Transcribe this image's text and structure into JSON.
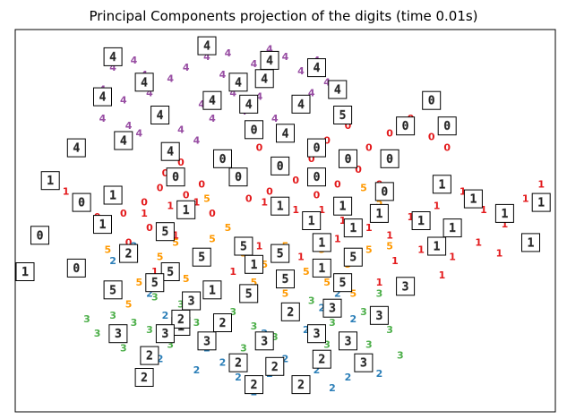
{
  "window": {
    "title": "Principal Components projection of the digits (time 0.01s)"
  },
  "chart_data": {
    "type": "scatter",
    "title": "Principal Components projection of the digits (time 0.01s)",
    "xlabel": "",
    "ylabel": "",
    "axis_ticks": "none",
    "xlim": [
      0,
      1
    ],
    "ylim": [
      0,
      1
    ],
    "grid": false,
    "legend": "none",
    "classes": [
      {
        "digit": "0",
        "color": "#e31a1c"
      },
      {
        "digit": "1",
        "color": "#e31a1c"
      },
      {
        "digit": "2",
        "color": "#2c7fb8"
      },
      {
        "digit": "3",
        "color": "#4daf4a"
      },
      {
        "digit": "4",
        "color": "#984ea3"
      },
      {
        "digit": "5",
        "color": "#ff9900"
      }
    ],
    "points": [
      {
        "d": "4",
        "x": 0.17,
        "y": 0.92
      },
      {
        "d": "4",
        "x": 0.21,
        "y": 0.94
      },
      {
        "d": "4",
        "x": 0.23,
        "y": 0.9
      },
      {
        "d": "4",
        "x": 0.15,
        "y": 0.86
      },
      {
        "d": "4",
        "x": 0.19,
        "y": 0.83
      },
      {
        "d": "4",
        "x": 0.24,
        "y": 0.85
      },
      {
        "d": "4",
        "x": 0.28,
        "y": 0.89
      },
      {
        "d": "4",
        "x": 0.31,
        "y": 0.92
      },
      {
        "d": "4",
        "x": 0.35,
        "y": 0.95
      },
      {
        "d": "4",
        "x": 0.38,
        "y": 0.9
      },
      {
        "d": "4",
        "x": 0.44,
        "y": 0.93
      },
      {
        "d": "4",
        "x": 0.47,
        "y": 0.97
      },
      {
        "d": "4",
        "x": 0.5,
        "y": 0.95
      },
      {
        "d": "4",
        "x": 0.53,
        "y": 0.91
      },
      {
        "d": "4",
        "x": 0.56,
        "y": 0.94
      },
      {
        "d": "4",
        "x": 0.58,
        "y": 0.88
      },
      {
        "d": "4",
        "x": 0.61,
        "y": 0.86
      },
      {
        "d": "4",
        "x": 0.15,
        "y": 0.78
      },
      {
        "d": "4",
        "x": 0.2,
        "y": 0.76
      },
      {
        "d": "4",
        "x": 0.26,
        "y": 0.8
      },
      {
        "d": "4",
        "x": 0.3,
        "y": 0.75
      },
      {
        "d": "4",
        "x": 0.34,
        "y": 0.82
      },
      {
        "d": "4",
        "x": 0.4,
        "y": 0.85
      },
      {
        "d": "4",
        "x": 0.45,
        "y": 0.84
      },
      {
        "d": "4",
        "x": 0.52,
        "y": 0.82
      },
      {
        "d": "4",
        "x": 0.48,
        "y": 0.78
      },
      {
        "d": "4",
        "x": 0.36,
        "y": 0.78
      },
      {
        "d": "4",
        "x": 0.27,
        "y": 0.7
      },
      {
        "d": "4",
        "x": 0.33,
        "y": 0.72
      },
      {
        "d": "4",
        "x": 0.42,
        "y": 0.8
      },
      {
        "d": "4",
        "x": 0.22,
        "y": 0.74
      },
      {
        "d": "4",
        "x": 0.39,
        "y": 0.96
      },
      {
        "d": "4",
        "x": 0.55,
        "y": 0.85
      },
      {
        "d": "0",
        "x": 0.3,
        "y": 0.66
      },
      {
        "d": "0",
        "x": 0.27,
        "y": 0.63
      },
      {
        "d": "0",
        "x": 0.34,
        "y": 0.6
      },
      {
        "d": "0",
        "x": 0.38,
        "y": 0.68
      },
      {
        "d": "0",
        "x": 0.41,
        "y": 0.62
      },
      {
        "d": "0",
        "x": 0.45,
        "y": 0.7
      },
      {
        "d": "0",
        "x": 0.49,
        "y": 0.66
      },
      {
        "d": "0",
        "x": 0.52,
        "y": 0.61
      },
      {
        "d": "0",
        "x": 0.55,
        "y": 0.67
      },
      {
        "d": "0",
        "x": 0.58,
        "y": 0.72
      },
      {
        "d": "0",
        "x": 0.62,
        "y": 0.76
      },
      {
        "d": "0",
        "x": 0.66,
        "y": 0.7
      },
      {
        "d": "0",
        "x": 0.7,
        "y": 0.74
      },
      {
        "d": "0",
        "x": 0.74,
        "y": 0.78
      },
      {
        "d": "0",
        "x": 0.64,
        "y": 0.64
      },
      {
        "d": "0",
        "x": 0.6,
        "y": 0.6
      },
      {
        "d": "0",
        "x": 0.56,
        "y": 0.57
      },
      {
        "d": "0",
        "x": 0.31,
        "y": 0.57
      },
      {
        "d": "0",
        "x": 0.23,
        "y": 0.55
      },
      {
        "d": "0",
        "x": 0.19,
        "y": 0.52
      },
      {
        "d": "0",
        "x": 0.24,
        "y": 0.48
      },
      {
        "d": "0",
        "x": 0.2,
        "y": 0.44
      },
      {
        "d": "0",
        "x": 0.14,
        "y": 0.51
      },
      {
        "d": "0",
        "x": 0.36,
        "y": 0.52
      },
      {
        "d": "0",
        "x": 0.43,
        "y": 0.56
      },
      {
        "d": "0",
        "x": 0.47,
        "y": 0.58
      },
      {
        "d": "0",
        "x": 0.68,
        "y": 0.6
      },
      {
        "d": "0",
        "x": 0.78,
        "y": 0.73
      },
      {
        "d": "0",
        "x": 0.81,
        "y": 0.7
      },
      {
        "d": "0",
        "x": 0.26,
        "y": 0.59
      },
      {
        "d": "1",
        "x": 0.08,
        "y": 0.58
      },
      {
        "d": "1",
        "x": 0.23,
        "y": 0.52
      },
      {
        "d": "1",
        "x": 0.28,
        "y": 0.54
      },
      {
        "d": "1",
        "x": 0.33,
        "y": 0.55
      },
      {
        "d": "1",
        "x": 0.46,
        "y": 0.55
      },
      {
        "d": "1",
        "x": 0.52,
        "y": 0.53
      },
      {
        "d": "1",
        "x": 0.57,
        "y": 0.53
      },
      {
        "d": "1",
        "x": 0.61,
        "y": 0.5
      },
      {
        "d": "1",
        "x": 0.66,
        "y": 0.48
      },
      {
        "d": "1",
        "x": 0.7,
        "y": 0.46
      },
      {
        "d": "1",
        "x": 0.74,
        "y": 0.51
      },
      {
        "d": "1",
        "x": 0.79,
        "y": 0.54
      },
      {
        "d": "1",
        "x": 0.84,
        "y": 0.58
      },
      {
        "d": "1",
        "x": 0.88,
        "y": 0.53
      },
      {
        "d": "1",
        "x": 0.92,
        "y": 0.49
      },
      {
        "d": "1",
        "x": 0.96,
        "y": 0.56
      },
      {
        "d": "1",
        "x": 0.99,
        "y": 0.6
      },
      {
        "d": "1",
        "x": 0.87,
        "y": 0.44
      },
      {
        "d": "1",
        "x": 0.82,
        "y": 0.4
      },
      {
        "d": "1",
        "x": 0.76,
        "y": 0.42
      },
      {
        "d": "1",
        "x": 0.71,
        "y": 0.39
      },
      {
        "d": "1",
        "x": 0.6,
        "y": 0.45
      },
      {
        "d": "1",
        "x": 0.53,
        "y": 0.4
      },
      {
        "d": "1",
        "x": 0.45,
        "y": 0.43
      },
      {
        "d": "1",
        "x": 0.4,
        "y": 0.36
      },
      {
        "d": "1",
        "x": 0.29,
        "y": 0.46
      },
      {
        "d": "1",
        "x": 0.25,
        "y": 0.36
      },
      {
        "d": "1",
        "x": 0.91,
        "y": 0.41
      },
      {
        "d": "1",
        "x": 0.8,
        "y": 0.35
      },
      {
        "d": "1",
        "x": 0.68,
        "y": 0.33
      },
      {
        "d": "5",
        "x": 0.29,
        "y": 0.44
      },
      {
        "d": "5",
        "x": 0.33,
        "y": 0.4
      },
      {
        "d": "5",
        "x": 0.36,
        "y": 0.45
      },
      {
        "d": "5",
        "x": 0.39,
        "y": 0.48
      },
      {
        "d": "5",
        "x": 0.42,
        "y": 0.41
      },
      {
        "d": "5",
        "x": 0.46,
        "y": 0.38
      },
      {
        "d": "5",
        "x": 0.5,
        "y": 0.43
      },
      {
        "d": "5",
        "x": 0.54,
        "y": 0.36
      },
      {
        "d": "5",
        "x": 0.57,
        "y": 0.42
      },
      {
        "d": "5",
        "x": 0.62,
        "y": 0.38
      },
      {
        "d": "5",
        "x": 0.66,
        "y": 0.42
      },
      {
        "d": "5",
        "x": 0.68,
        "y": 0.55
      },
      {
        "d": "5",
        "x": 0.65,
        "y": 0.59
      },
      {
        "d": "5",
        "x": 0.31,
        "y": 0.34
      },
      {
        "d": "5",
        "x": 0.26,
        "y": 0.4
      },
      {
        "d": "5",
        "x": 0.22,
        "y": 0.33
      },
      {
        "d": "5",
        "x": 0.2,
        "y": 0.27
      },
      {
        "d": "5",
        "x": 0.37,
        "y": 0.3
      },
      {
        "d": "5",
        "x": 0.44,
        "y": 0.33
      },
      {
        "d": "5",
        "x": 0.5,
        "y": 0.3
      },
      {
        "d": "5",
        "x": 0.58,
        "y": 0.33
      },
      {
        "d": "5",
        "x": 0.63,
        "y": 0.3
      },
      {
        "d": "5",
        "x": 0.7,
        "y": 0.43
      },
      {
        "d": "5",
        "x": 0.35,
        "y": 0.56
      },
      {
        "d": "5",
        "x": 0.16,
        "y": 0.42
      },
      {
        "d": "3",
        "x": 0.17,
        "y": 0.24
      },
      {
        "d": "3",
        "x": 0.14,
        "y": 0.19
      },
      {
        "d": "3",
        "x": 0.19,
        "y": 0.15
      },
      {
        "d": "3",
        "x": 0.24,
        "y": 0.2
      },
      {
        "d": "3",
        "x": 0.28,
        "y": 0.16
      },
      {
        "d": "3",
        "x": 0.33,
        "y": 0.22
      },
      {
        "d": "3",
        "x": 0.36,
        "y": 0.18
      },
      {
        "d": "3",
        "x": 0.4,
        "y": 0.25
      },
      {
        "d": "3",
        "x": 0.44,
        "y": 0.21
      },
      {
        "d": "3",
        "x": 0.48,
        "y": 0.18
      },
      {
        "d": "3",
        "x": 0.52,
        "y": 0.24
      },
      {
        "d": "3",
        "x": 0.55,
        "y": 0.28
      },
      {
        "d": "3",
        "x": 0.59,
        "y": 0.22
      },
      {
        "d": "3",
        "x": 0.62,
        "y": 0.18
      },
      {
        "d": "3",
        "x": 0.65,
        "y": 0.25
      },
      {
        "d": "3",
        "x": 0.68,
        "y": 0.3
      },
      {
        "d": "3",
        "x": 0.66,
        "y": 0.16
      },
      {
        "d": "3",
        "x": 0.7,
        "y": 0.2
      },
      {
        "d": "3",
        "x": 0.72,
        "y": 0.13
      },
      {
        "d": "3",
        "x": 0.3,
        "y": 0.27
      },
      {
        "d": "3",
        "x": 0.25,
        "y": 0.29
      },
      {
        "d": "3",
        "x": 0.21,
        "y": 0.22
      },
      {
        "d": "3",
        "x": 0.58,
        "y": 0.16
      },
      {
        "d": "3",
        "x": 0.12,
        "y": 0.23
      },
      {
        "d": "3",
        "x": 0.42,
        "y": 0.15
      },
      {
        "d": "2",
        "x": 0.17,
        "y": 0.39
      },
      {
        "d": "2",
        "x": 0.21,
        "y": 0.43
      },
      {
        "d": "2",
        "x": 0.24,
        "y": 0.3
      },
      {
        "d": "2",
        "x": 0.27,
        "y": 0.24
      },
      {
        "d": "2",
        "x": 0.3,
        "y": 0.2
      },
      {
        "d": "2",
        "x": 0.35,
        "y": 0.15
      },
      {
        "d": "2",
        "x": 0.38,
        "y": 0.11
      },
      {
        "d": "2",
        "x": 0.41,
        "y": 0.07
      },
      {
        "d": "2",
        "x": 0.44,
        "y": 0.03
      },
      {
        "d": "2",
        "x": 0.47,
        "y": 0.08
      },
      {
        "d": "2",
        "x": 0.5,
        "y": 0.12
      },
      {
        "d": "2",
        "x": 0.53,
        "y": 0.05
      },
      {
        "d": "2",
        "x": 0.56,
        "y": 0.09
      },
      {
        "d": "2",
        "x": 0.59,
        "y": 0.04
      },
      {
        "d": "2",
        "x": 0.62,
        "y": 0.07
      },
      {
        "d": "2",
        "x": 0.65,
        "y": 0.11
      },
      {
        "d": "2",
        "x": 0.68,
        "y": 0.08
      },
      {
        "d": "2",
        "x": 0.46,
        "y": 0.19
      },
      {
        "d": "2",
        "x": 0.5,
        "y": 0.25
      },
      {
        "d": "2",
        "x": 0.54,
        "y": 0.2
      },
      {
        "d": "2",
        "x": 0.57,
        "y": 0.26
      },
      {
        "d": "2",
        "x": 0.6,
        "y": 0.3
      },
      {
        "d": "2",
        "x": 0.63,
        "y": 0.23
      },
      {
        "d": "2",
        "x": 0.33,
        "y": 0.09
      },
      {
        "d": "2",
        "x": 0.26,
        "y": 0.12
      },
      {
        "d": "2",
        "x": 0.18,
        "y": 0.31
      }
    ],
    "thumbnails": [
      {
        "d": "4",
        "x": 0.17,
        "y": 0.95
      },
      {
        "d": "4",
        "x": 0.35,
        "y": 0.98
      },
      {
        "d": "4",
        "x": 0.47,
        "y": 0.94
      },
      {
        "d": "4",
        "x": 0.56,
        "y": 0.92
      },
      {
        "d": "4",
        "x": 0.23,
        "y": 0.88
      },
      {
        "d": "4",
        "x": 0.41,
        "y": 0.88
      },
      {
        "d": "4",
        "x": 0.46,
        "y": 0.89
      },
      {
        "d": "4",
        "x": 0.6,
        "y": 0.86
      },
      {
        "d": "4",
        "x": 0.15,
        "y": 0.84
      },
      {
        "d": "4",
        "x": 0.36,
        "y": 0.83
      },
      {
        "d": "4",
        "x": 0.43,
        "y": 0.82
      },
      {
        "d": "4",
        "x": 0.53,
        "y": 0.82
      },
      {
        "d": "4",
        "x": 0.26,
        "y": 0.79
      },
      {
        "d": "4",
        "x": 0.5,
        "y": 0.74
      },
      {
        "d": "4",
        "x": 0.19,
        "y": 0.72
      },
      {
        "d": "4",
        "x": 0.28,
        "y": 0.69
      },
      {
        "d": "4",
        "x": 0.1,
        "y": 0.7
      },
      {
        "d": "0",
        "x": 0.78,
        "y": 0.83
      },
      {
        "d": "0",
        "x": 0.73,
        "y": 0.76
      },
      {
        "d": "0",
        "x": 0.81,
        "y": 0.76
      },
      {
        "d": "0",
        "x": 0.44,
        "y": 0.75
      },
      {
        "d": "0",
        "x": 0.56,
        "y": 0.7
      },
      {
        "d": "0",
        "x": 0.62,
        "y": 0.67
      },
      {
        "d": "0",
        "x": 0.7,
        "y": 0.67
      },
      {
        "d": "0",
        "x": 0.38,
        "y": 0.67
      },
      {
        "d": "0",
        "x": 0.49,
        "y": 0.65
      },
      {
        "d": "0",
        "x": 0.56,
        "y": 0.62
      },
      {
        "d": "0",
        "x": 0.29,
        "y": 0.62
      },
      {
        "d": "0",
        "x": 0.41,
        "y": 0.62
      },
      {
        "d": "0",
        "x": 0.69,
        "y": 0.58
      },
      {
        "d": "0",
        "x": 0.11,
        "y": 0.55
      },
      {
        "d": "0",
        "x": 0.03,
        "y": 0.46
      },
      {
        "d": "0",
        "x": 0.1,
        "y": 0.37
      },
      {
        "d": "1",
        "x": 0.05,
        "y": 0.61
      },
      {
        "d": "1",
        "x": 0.8,
        "y": 0.6
      },
      {
        "d": "1",
        "x": 0.86,
        "y": 0.56
      },
      {
        "d": "1",
        "x": 0.99,
        "y": 0.55
      },
      {
        "d": "1",
        "x": 0.17,
        "y": 0.57
      },
      {
        "d": "1",
        "x": 0.61,
        "y": 0.54
      },
      {
        "d": "1",
        "x": 0.31,
        "y": 0.53
      },
      {
        "d": "1",
        "x": 0.49,
        "y": 0.54
      },
      {
        "d": "1",
        "x": 0.68,
        "y": 0.52
      },
      {
        "d": "1",
        "x": 0.92,
        "y": 0.52
      },
      {
        "d": "1",
        "x": 0.55,
        "y": 0.5
      },
      {
        "d": "1",
        "x": 0.76,
        "y": 0.5
      },
      {
        "d": "1",
        "x": 0.15,
        "y": 0.49
      },
      {
        "d": "1",
        "x": 0.82,
        "y": 0.48
      },
      {
        "d": "1",
        "x": 0.63,
        "y": 0.48
      },
      {
        "d": "1",
        "x": 0.97,
        "y": 0.44
      },
      {
        "d": "1",
        "x": 0.79,
        "y": 0.43
      },
      {
        "d": "1",
        "x": 0.57,
        "y": 0.44
      },
      {
        "d": "1",
        "x": 0.44,
        "y": 0.38
      },
      {
        "d": "1",
        "x": 0.0,
        "y": 0.36
      },
      {
        "d": "1",
        "x": 0.57,
        "y": 0.37
      },
      {
        "d": "1",
        "x": 0.36,
        "y": 0.31
      },
      {
        "d": "1",
        "x": 0.3,
        "y": 0.21
      },
      {
        "d": "2",
        "x": 0.3,
        "y": 0.23
      },
      {
        "d": "2",
        "x": 0.2,
        "y": 0.41
      },
      {
        "d": "2",
        "x": 0.51,
        "y": 0.25
      },
      {
        "d": "2",
        "x": 0.38,
        "y": 0.22
      },
      {
        "d": "2",
        "x": 0.24,
        "y": 0.13
      },
      {
        "d": "2",
        "x": 0.41,
        "y": 0.11
      },
      {
        "d": "2",
        "x": 0.48,
        "y": 0.1
      },
      {
        "d": "2",
        "x": 0.57,
        "y": 0.12
      },
      {
        "d": "2",
        "x": 0.44,
        "y": 0.05
      },
      {
        "d": "2",
        "x": 0.53,
        "y": 0.05
      },
      {
        "d": "2",
        "x": 0.23,
        "y": 0.07
      },
      {
        "d": "3",
        "x": 0.18,
        "y": 0.19
      },
      {
        "d": "3",
        "x": 0.27,
        "y": 0.19
      },
      {
        "d": "3",
        "x": 0.35,
        "y": 0.17
      },
      {
        "d": "3",
        "x": 0.46,
        "y": 0.17
      },
      {
        "d": "3",
        "x": 0.56,
        "y": 0.19
      },
      {
        "d": "3",
        "x": 0.62,
        "y": 0.17
      },
      {
        "d": "3",
        "x": 0.59,
        "y": 0.26
      },
      {
        "d": "3",
        "x": 0.68,
        "y": 0.24
      },
      {
        "d": "3",
        "x": 0.73,
        "y": 0.32
      },
      {
        "d": "3",
        "x": 0.32,
        "y": 0.28
      },
      {
        "d": "3",
        "x": 0.65,
        "y": 0.11
      },
      {
        "d": "5",
        "x": 0.61,
        "y": 0.79
      },
      {
        "d": "5",
        "x": 0.27,
        "y": 0.47
      },
      {
        "d": "5",
        "x": 0.42,
        "y": 0.43
      },
      {
        "d": "5",
        "x": 0.49,
        "y": 0.41
      },
      {
        "d": "5",
        "x": 0.63,
        "y": 0.4
      },
      {
        "d": "5",
        "x": 0.34,
        "y": 0.4
      },
      {
        "d": "5",
        "x": 0.28,
        "y": 0.36
      },
      {
        "d": "5",
        "x": 0.5,
        "y": 0.34
      },
      {
        "d": "5",
        "x": 0.61,
        "y": 0.33
      },
      {
        "d": "5",
        "x": 0.17,
        "y": 0.31
      },
      {
        "d": "5",
        "x": 0.43,
        "y": 0.3
      },
      {
        "d": "5",
        "x": 0.25,
        "y": 0.33
      }
    ]
  }
}
